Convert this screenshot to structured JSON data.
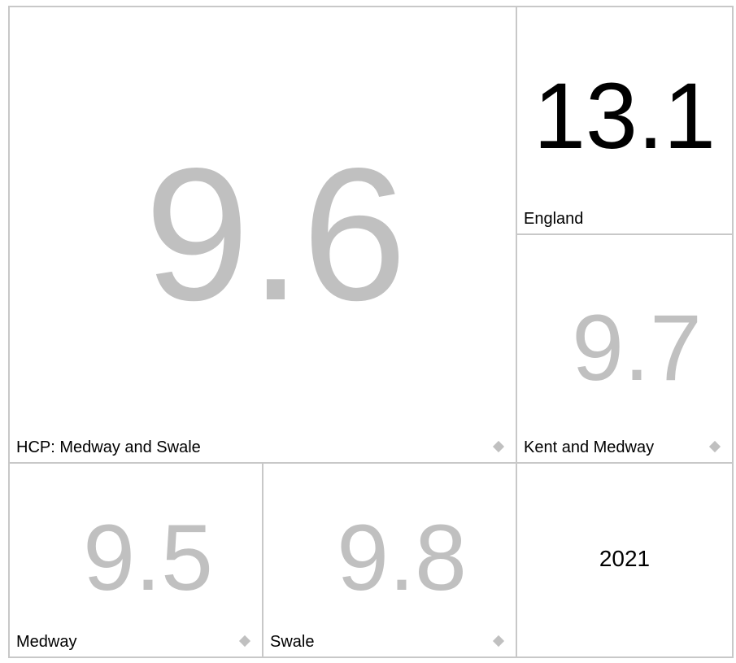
{
  "cards": [
    {
      "label": "HCP: Medway and Swale",
      "value": 9.6
    },
    {
      "label": "England",
      "value": 13.1
    },
    {
      "label": "Kent and Medway",
      "value": 9.7
    },
    {
      "label": "Medway",
      "value": 9.5
    },
    {
      "label": "Swale",
      "value": 9.8
    }
  ],
  "year": "2021"
}
